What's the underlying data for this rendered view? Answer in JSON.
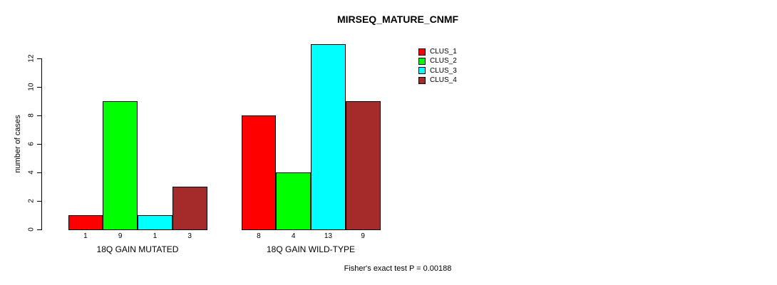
{
  "title": "MIRSEQ_MATURE_CNMF",
  "footnote": "Fisher's exact test P = 0.00188",
  "chart_data": {
    "type": "bar",
    "title": "MIRSEQ_MATURE_CNMF",
    "xlabel": "",
    "ylabel": "number of cases",
    "ylim": [
      0,
      13
    ],
    "yticks": [
      0,
      2,
      4,
      6,
      8,
      10,
      12
    ],
    "grid": false,
    "legend_position": "top-right",
    "categories": [
      "18Q GAIN MUTATED",
      "18Q GAIN WILD-TYPE"
    ],
    "series": [
      {
        "name": "CLUS_1",
        "color": "#FF0000",
        "values": [
          1,
          8
        ]
      },
      {
        "name": "CLUS_2",
        "color": "#00FF00",
        "values": [
          9,
          4
        ]
      },
      {
        "name": "CLUS_3",
        "color": "#00FFFF",
        "values": [
          1,
          13
        ]
      },
      {
        "name": "CLUS_4",
        "color": "#A52A2A",
        "values": [
          3,
          9
        ]
      }
    ],
    "bar_value_labels_shown": true,
    "annotation": "Fisher's exact test P = 0.00188"
  }
}
